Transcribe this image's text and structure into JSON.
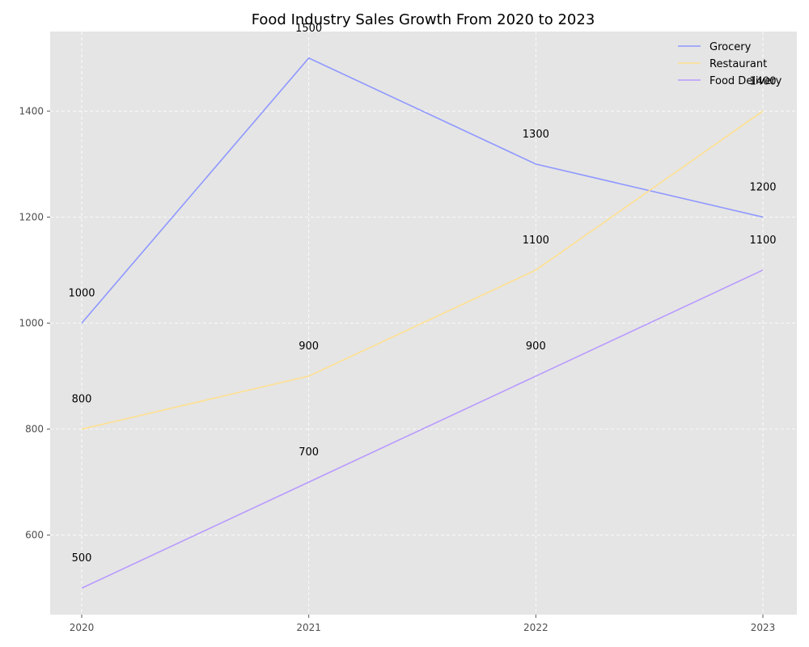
{
  "chart_data": {
    "type": "line",
    "title": "Food Industry Sales Growth From 2020 to 2023",
    "xlabel": "",
    "ylabel": "",
    "categories": [
      "2020",
      "2021",
      "2022",
      "2023"
    ],
    "ylim": [
      450,
      1550
    ],
    "yticks": [
      600,
      800,
      1000,
      1200,
      1400
    ],
    "grid": true,
    "legend_position": "top-right",
    "series": [
      {
        "name": "Grocery",
        "values": [
          1000,
          1500,
          1300,
          1200
        ],
        "color": "#8f98ff"
      },
      {
        "name": "Restaurant",
        "values": [
          800,
          900,
          1100,
          1400
        ],
        "color": "#ffe08f"
      },
      {
        "name": "Food Delivery",
        "values": [
          500,
          700,
          900,
          1100
        ],
        "color": "#b89aff"
      }
    ]
  },
  "colors": {
    "plot_background": "#e5e5e5",
    "grid": "#ffffff"
  }
}
